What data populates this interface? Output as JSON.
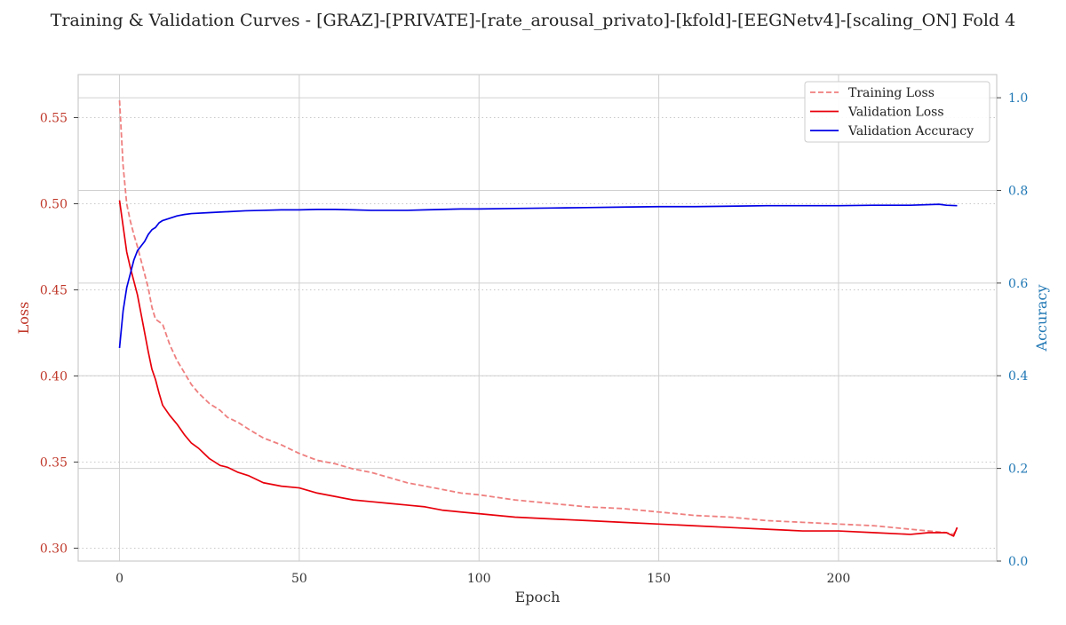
{
  "chart_data": {
    "type": "line",
    "title": "Training & Validation Curves - [GRAZ]-[PRIVATE]-[rate_arousal_privato]-[kfold]-[EEGNetv4]-[scaling_ON] Fold 4",
    "xlabel": "Epoch",
    "ylabel_left": "Loss",
    "ylabel_right": "Accuracy",
    "xlim": [
      -11.5,
      244
    ],
    "ylim_left": [
      0.2925,
      0.575
    ],
    "ylim_right": [
      0.0,
      1.05
    ],
    "x_ticks": [
      0,
      50,
      100,
      150,
      200
    ],
    "y_left_ticks": [
      "0.30",
      "0.35",
      "0.40",
      "0.45",
      "0.50",
      "0.55"
    ],
    "y_right_ticks": [
      "0.0",
      "0.2",
      "0.4",
      "0.6",
      "0.8",
      "1.0"
    ],
    "grid": true,
    "legend_position": "top-right",
    "series": [
      {
        "name": "Training Loss",
        "axis": "left",
        "color": "#ef7f7f",
        "style": "dashed",
        "points": [
          [
            0,
            0.56
          ],
          [
            1,
            0.522
          ],
          [
            2,
            0.5
          ],
          [
            3,
            0.49
          ],
          [
            4,
            0.482
          ],
          [
            5,
            0.475
          ],
          [
            6,
            0.467
          ],
          [
            7,
            0.459
          ],
          [
            8,
            0.451
          ],
          [
            9,
            0.44
          ],
          [
            10,
            0.433
          ],
          [
            12,
            0.43
          ],
          [
            14,
            0.418
          ],
          [
            16,
            0.409
          ],
          [
            18,
            0.402
          ],
          [
            20,
            0.395
          ],
          [
            22,
            0.39
          ],
          [
            25,
            0.384
          ],
          [
            28,
            0.38
          ],
          [
            30,
            0.376
          ],
          [
            33,
            0.373
          ],
          [
            36,
            0.369
          ],
          [
            40,
            0.364
          ],
          [
            45,
            0.36
          ],
          [
            50,
            0.355
          ],
          [
            55,
            0.351
          ],
          [
            60,
            0.349
          ],
          [
            65,
            0.346
          ],
          [
            70,
            0.344
          ],
          [
            75,
            0.341
          ],
          [
            80,
            0.338
          ],
          [
            85,
            0.336
          ],
          [
            90,
            0.334
          ],
          [
            95,
            0.332
          ],
          [
            100,
            0.331
          ],
          [
            110,
            0.328
          ],
          [
            120,
            0.326
          ],
          [
            130,
            0.324
          ],
          [
            140,
            0.323
          ],
          [
            150,
            0.321
          ],
          [
            160,
            0.319
          ],
          [
            170,
            0.318
          ],
          [
            180,
            0.316
          ],
          [
            190,
            0.315
          ],
          [
            200,
            0.314
          ],
          [
            210,
            0.313
          ],
          [
            220,
            0.311
          ],
          [
            225,
            0.31
          ],
          [
            230,
            0.309
          ],
          [
            232,
            0.308
          ],
          [
            233,
            0.312
          ]
        ]
      },
      {
        "name": "Validation Loss",
        "axis": "left",
        "color": "#e8000b",
        "style": "solid",
        "points": [
          [
            0,
            0.502
          ],
          [
            1,
            0.487
          ],
          [
            2,
            0.472
          ],
          [
            3,
            0.463
          ],
          [
            4,
            0.455
          ],
          [
            5,
            0.447
          ],
          [
            6,
            0.436
          ],
          [
            7,
            0.425
          ],
          [
            8,
            0.414
          ],
          [
            9,
            0.404
          ],
          [
            10,
            0.398
          ],
          [
            11,
            0.39
          ],
          [
            12,
            0.383
          ],
          [
            14,
            0.377
          ],
          [
            16,
            0.372
          ],
          [
            18,
            0.366
          ],
          [
            20,
            0.361
          ],
          [
            22,
            0.358
          ],
          [
            25,
            0.352
          ],
          [
            28,
            0.348
          ],
          [
            30,
            0.347
          ],
          [
            33,
            0.344
          ],
          [
            36,
            0.342
          ],
          [
            40,
            0.338
          ],
          [
            45,
            0.336
          ],
          [
            50,
            0.335
          ],
          [
            55,
            0.332
          ],
          [
            60,
            0.33
          ],
          [
            65,
            0.328
          ],
          [
            70,
            0.327
          ],
          [
            75,
            0.326
          ],
          [
            80,
            0.325
          ],
          [
            85,
            0.324
          ],
          [
            90,
            0.322
          ],
          [
            95,
            0.321
          ],
          [
            100,
            0.32
          ],
          [
            110,
            0.318
          ],
          [
            120,
            0.317
          ],
          [
            130,
            0.316
          ],
          [
            140,
            0.315
          ],
          [
            150,
            0.314
          ],
          [
            160,
            0.313
          ],
          [
            170,
            0.312
          ],
          [
            180,
            0.311
          ],
          [
            190,
            0.31
          ],
          [
            200,
            0.31
          ],
          [
            210,
            0.309
          ],
          [
            220,
            0.308
          ],
          [
            225,
            0.309
          ],
          [
            230,
            0.309
          ],
          [
            232,
            0.307
          ],
          [
            233,
            0.312
          ]
        ]
      },
      {
        "name": "Validation Accuracy",
        "axis": "right",
        "color": "#0000e6",
        "style": "solid",
        "points": [
          [
            0,
            0.46
          ],
          [
            1,
            0.54
          ],
          [
            2,
            0.59
          ],
          [
            3,
            0.62
          ],
          [
            4,
            0.65
          ],
          [
            5,
            0.67
          ],
          [
            6,
            0.68
          ],
          [
            7,
            0.69
          ],
          [
            8,
            0.705
          ],
          [
            9,
            0.715
          ],
          [
            10,
            0.72
          ],
          [
            11,
            0.73
          ],
          [
            12,
            0.735
          ],
          [
            14,
            0.74
          ],
          [
            16,
            0.745
          ],
          [
            18,
            0.748
          ],
          [
            20,
            0.75
          ],
          [
            25,
            0.752
          ],
          [
            30,
            0.754
          ],
          [
            35,
            0.756
          ],
          [
            40,
            0.757
          ],
          [
            45,
            0.758
          ],
          [
            50,
            0.758
          ],
          [
            55,
            0.759
          ],
          [
            60,
            0.759
          ],
          [
            65,
            0.758
          ],
          [
            70,
            0.757
          ],
          [
            75,
            0.757
          ],
          [
            80,
            0.757
          ],
          [
            85,
            0.758
          ],
          [
            90,
            0.759
          ],
          [
            95,
            0.76
          ],
          [
            100,
            0.76
          ],
          [
            110,
            0.761
          ],
          [
            120,
            0.762
          ],
          [
            130,
            0.763
          ],
          [
            140,
            0.764
          ],
          [
            150,
            0.765
          ],
          [
            160,
            0.765
          ],
          [
            170,
            0.766
          ],
          [
            180,
            0.767
          ],
          [
            190,
            0.767
          ],
          [
            200,
            0.767
          ],
          [
            210,
            0.768
          ],
          [
            220,
            0.768
          ],
          [
            228,
            0.77
          ],
          [
            230,
            0.768
          ],
          [
            233,
            0.767
          ]
        ]
      }
    ]
  }
}
